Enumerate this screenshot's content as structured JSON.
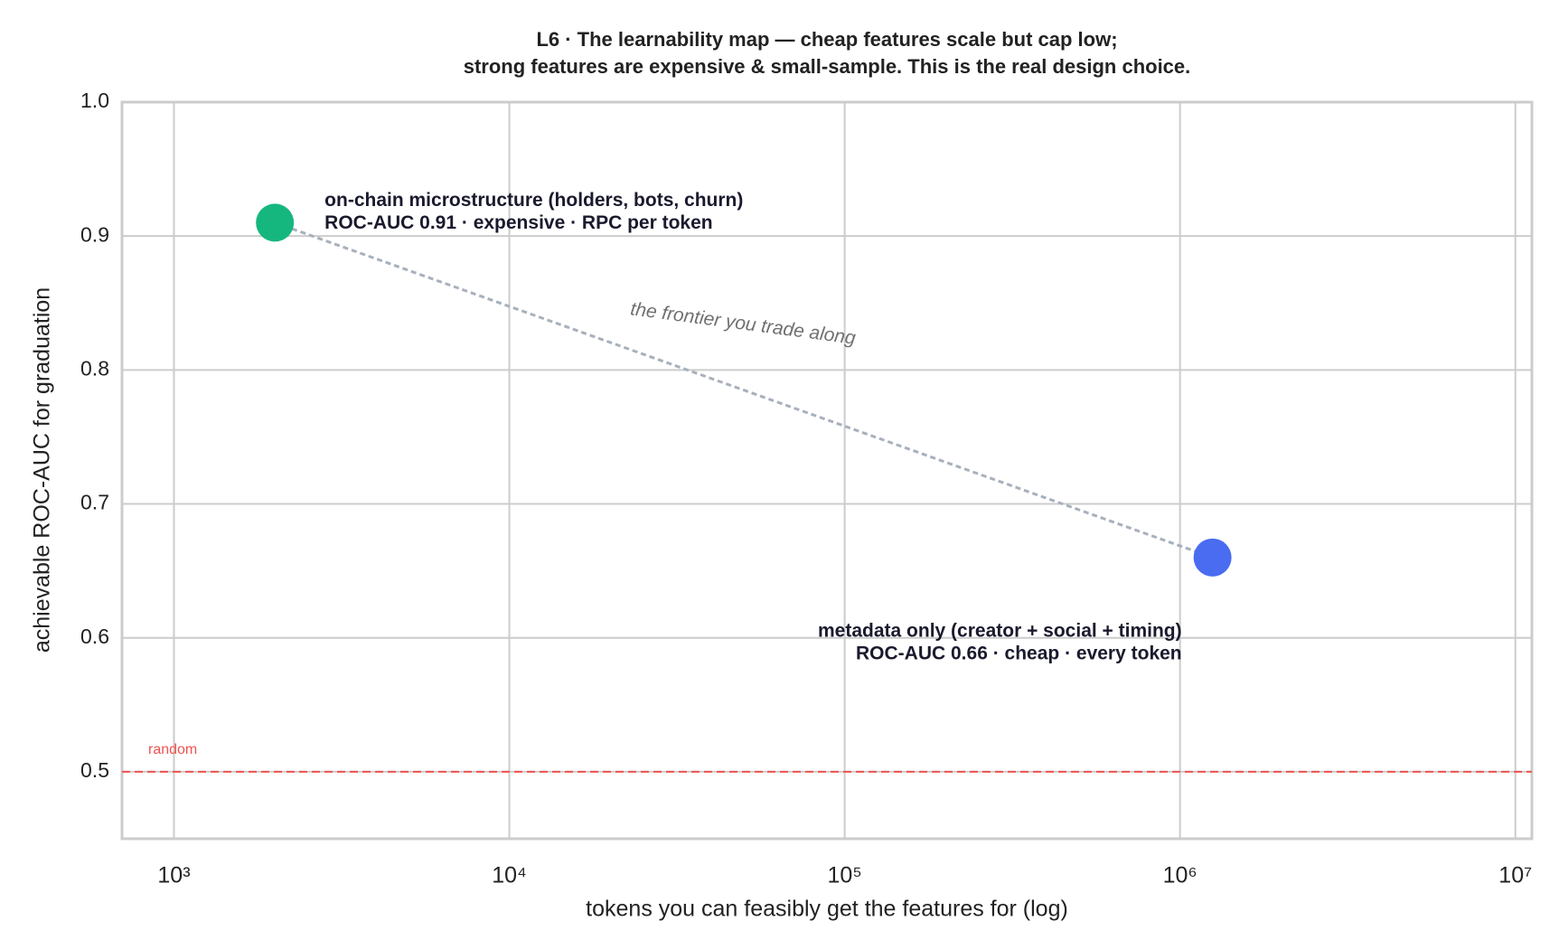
{
  "chart_data": {
    "type": "scatter",
    "title": "L6 · The learnability map — cheap features scale but cap low;",
    "subtitle": "strong features are expensive & small-sample. This is the real design choice.",
    "x_label": "tokens you can feasibly get the features for (log)",
    "y_label": "achievable ROC-AUC for graduation",
    "x_scale": "log",
    "grid": true,
    "xlim": [
      700,
      11200000
    ],
    "ylim": [
      0.45,
      1
    ],
    "xticks": [
      {
        "value": 1000,
        "label": "10³"
      },
      {
        "value": 10000,
        "label": "10⁴"
      },
      {
        "value": 100000,
        "label": "10⁵"
      },
      {
        "value": 1000000,
        "label": "10⁶"
      },
      {
        "value": 10000000,
        "label": "10⁷"
      }
    ],
    "yticks": [
      0.5,
      0.6,
      0.7,
      0.8,
      0.9,
      {
        "value": 1,
        "label": "1.0"
      }
    ],
    "series": [
      {
        "name": "on-chain microstructure (holders, bots, churn)",
        "color": "#16b77f",
        "x": [
          2000
        ],
        "values": [
          0.91
        ],
        "value_labels": [
          "ROC-AUC 0.91  ·  expensive · RPC per token"
        ]
      },
      {
        "name": "metadata only (creator + social + timing)",
        "color": "#4a6cf0",
        "x": [
          1250000
        ],
        "values": [
          0.66
        ],
        "value_labels": [
          "ROC-AUC 0.66  ·  cheap · every token"
        ]
      }
    ],
    "frontier_label": "the frontier you trade along",
    "reference_line": {
      "value": 0.5,
      "label": "random",
      "color": "#ef5350"
    }
  }
}
